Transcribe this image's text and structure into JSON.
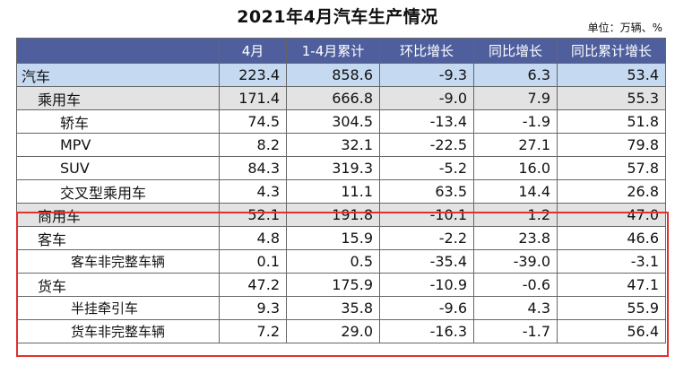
{
  "title": "2021年4月汽车生产情况",
  "unit": "单位：万辆、%",
  "columns": [
    "",
    "4月",
    "1-4月累计",
    "环比增长",
    "同比增长",
    "同比累计增长"
  ],
  "rows": [
    {
      "label": "汽车",
      "values": [
        "223.4",
        "858.6",
        "-9.3",
        "6.3",
        "53.4"
      ]
    },
    {
      "label": "乘用车",
      "values": [
        "171.4",
        "666.8",
        "-9.0",
        "7.9",
        "55.3"
      ]
    },
    {
      "label": "轿车",
      "values": [
        "74.5",
        "304.5",
        "-13.4",
        "-1.9",
        "51.8"
      ]
    },
    {
      "label": "MPV",
      "values": [
        "8.2",
        "32.1",
        "-22.5",
        "27.1",
        "79.8"
      ]
    },
    {
      "label": "SUV",
      "values": [
        "84.3",
        "319.3",
        "-5.2",
        "16.0",
        "57.8"
      ]
    },
    {
      "label": "交叉型乘用车",
      "values": [
        "4.3",
        "11.1",
        "63.5",
        "14.4",
        "26.8"
      ]
    },
    {
      "label": "商用车",
      "values": [
        "52.1",
        "191.8",
        "-10.1",
        "1.2",
        "47.0"
      ]
    },
    {
      "label": "客车",
      "values": [
        "4.8",
        "15.9",
        "-2.2",
        "23.8",
        "46.6"
      ]
    },
    {
      "label": "客车非完整车辆",
      "values": [
        "0.1",
        "0.5",
        "-35.4",
        "-39.0",
        "-3.1"
      ]
    },
    {
      "label": "货车",
      "values": [
        "47.2",
        "175.9",
        "-10.9",
        "-0.6",
        "47.1"
      ]
    },
    {
      "label": "半挂牵引车",
      "values": [
        "9.3",
        "35.8",
        "-9.6",
        "4.3",
        "55.9"
      ]
    },
    {
      "label": "货车非完整车辆",
      "values": [
        "7.2",
        "29.0",
        "-16.3",
        "-1.7",
        "56.4"
      ]
    }
  ],
  "colors": {
    "header": "#4f5f9e",
    "total_row": "#c5d9f1",
    "subtotal_row": "#e3e3e3",
    "highlight_border": "#e0302f"
  }
}
